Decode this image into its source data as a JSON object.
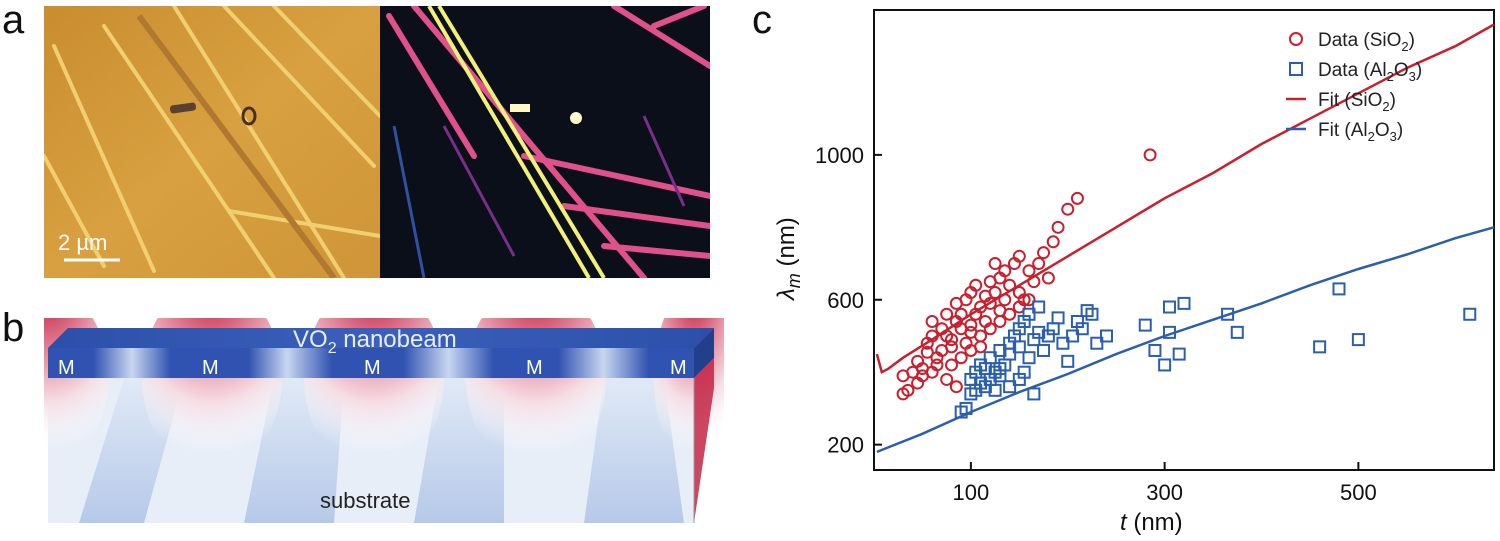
{
  "panels": {
    "a": "a",
    "b": "b",
    "c": "c"
  },
  "panel_a": {
    "scale_bar_label": "2 µm"
  },
  "panel_b": {
    "nanobeam_label_main": "VO",
    "nanobeam_label_sub": "2",
    "nanobeam_label_rest": " nanobeam",
    "domain_label": "M",
    "domain_labels": [
      "M",
      "M",
      "M",
      "M",
      "M"
    ],
    "substrate_label": "substrate"
  },
  "colors": {
    "sio2": "#c8202e",
    "al2o3": "#2b5fae",
    "beam": "#2f55b0"
  },
  "chart_data": {
    "type": "scatter",
    "xlabel_var": "t",
    "xlabel_unit": " (nm)",
    "ylabel_var": "λ",
    "ylabel_sub": "m",
    "ylabel_unit": " (nm)",
    "xlim": [
      0,
      640
    ],
    "ylim": [
      130,
      1400
    ],
    "xticks": [
      100,
      300,
      500
    ],
    "yticks": [
      200,
      600,
      1000
    ],
    "legend_position": "top-right",
    "legend": [
      {
        "prefix": "Data (SiO",
        "sub": "2",
        "suffix": ")"
      },
      {
        "prefix": "Data (Al",
        "sub": "2",
        "mid": "O",
        "sub2": "3",
        "suffix": ")"
      },
      {
        "prefix": "Fit (SiO",
        "sub": "2",
        "suffix": ")"
      },
      {
        "prefix": "Fit (Al",
        "sub": "2",
        "mid": "O",
        "sub2": "3",
        "suffix": ")"
      }
    ],
    "series": [
      {
        "name": "Data (SiO2)",
        "marker": "circle",
        "points": [
          [
            30,
            390
          ],
          [
            40,
            400
          ],
          [
            45,
            430
          ],
          [
            50,
            410
          ],
          [
            55,
            455
          ],
          [
            55,
            480
          ],
          [
            60,
            500
          ],
          [
            60,
            540
          ],
          [
            65,
            420
          ],
          [
            70,
            460
          ],
          [
            70,
            520
          ],
          [
            75,
            500
          ],
          [
            75,
            560
          ],
          [
            80,
            490
          ],
          [
            80,
            470
          ],
          [
            85,
            540
          ],
          [
            85,
            590
          ],
          [
            90,
            520
          ],
          [
            90,
            560
          ],
          [
            95,
            600
          ],
          [
            95,
            480
          ],
          [
            100,
            530
          ],
          [
            100,
            510
          ],
          [
            100,
            620
          ],
          [
            105,
            640
          ],
          [
            105,
            560
          ],
          [
            110,
            500
          ],
          [
            110,
            580
          ],
          [
            115,
            610
          ],
          [
            115,
            540
          ],
          [
            120,
            650
          ],
          [
            120,
            590
          ],
          [
            125,
            700
          ],
          [
            125,
            620
          ],
          [
            130,
            570
          ],
          [
            130,
            660
          ],
          [
            135,
            600
          ],
          [
            135,
            680
          ],
          [
            140,
            640
          ],
          [
            145,
            700
          ],
          [
            150,
            620
          ],
          [
            150,
            720
          ],
          [
            155,
            600
          ],
          [
            160,
            680
          ],
          [
            165,
            650
          ],
          [
            170,
            700
          ],
          [
            175,
            730
          ],
          [
            180,
            660
          ],
          [
            185,
            760
          ],
          [
            190,
            800
          ],
          [
            200,
            850
          ],
          [
            210,
            880
          ],
          [
            285,
            1000
          ],
          [
            30,
            340
          ],
          [
            35,
            350
          ],
          [
            45,
            370
          ],
          [
            60,
            400
          ],
          [
            65,
            440
          ],
          [
            75,
            380
          ],
          [
            90,
            440
          ],
          [
            100,
            460
          ],
          [
            110,
            470
          ],
          [
            120,
            520
          ],
          [
            130,
            540
          ],
          [
            140,
            560
          ],
          [
            150,
            580
          ],
          [
            160,
            600
          ],
          [
            80,
            420
          ],
          [
            85,
            360
          ],
          [
            50,
            390
          ]
        ]
      },
      {
        "name": "Data (Al2O3)",
        "marker": "square",
        "points": [
          [
            90,
            290
          ],
          [
            95,
            300
          ],
          [
            100,
            340
          ],
          [
            100,
            380
          ],
          [
            105,
            350
          ],
          [
            105,
            400
          ],
          [
            110,
            370
          ],
          [
            110,
            420
          ],
          [
            115,
            360
          ],
          [
            115,
            410
          ],
          [
            120,
            380
          ],
          [
            120,
            440
          ],
          [
            125,
            350
          ],
          [
            125,
            400
          ],
          [
            130,
            390
          ],
          [
            130,
            460
          ],
          [
            135,
            420
          ],
          [
            140,
            450
          ],
          [
            140,
            480
          ],
          [
            145,
            500
          ],
          [
            150,
            470
          ],
          [
            150,
            520
          ],
          [
            155,
            400
          ],
          [
            155,
            540
          ],
          [
            160,
            440
          ],
          [
            160,
            560
          ],
          [
            165,
            490
          ],
          [
            170,
            510
          ],
          [
            170,
            580
          ],
          [
            175,
            460
          ],
          [
            180,
            500
          ],
          [
            185,
            520
          ],
          [
            190,
            550
          ],
          [
            195,
            480
          ],
          [
            200,
            430
          ],
          [
            205,
            500
          ],
          [
            210,
            540
          ],
          [
            215,
            520
          ],
          [
            220,
            570
          ],
          [
            225,
            560
          ],
          [
            230,
            480
          ],
          [
            240,
            500
          ],
          [
            280,
            530
          ],
          [
            290,
            460
          ],
          [
            300,
            420
          ],
          [
            305,
            580
          ],
          [
            305,
            510
          ],
          [
            315,
            450
          ],
          [
            320,
            590
          ],
          [
            365,
            560
          ],
          [
            375,
            510
          ],
          [
            460,
            470
          ],
          [
            480,
            630
          ],
          [
            500,
            490
          ],
          [
            615,
            560
          ],
          [
            165,
            340
          ],
          [
            140,
            360
          ],
          [
            150,
            380
          ],
          [
            130,
            410
          ]
        ]
      },
      {
        "name": "Fit (SiO2)",
        "type": "line",
        "points": [
          [
            3,
            450
          ],
          [
            8,
            400
          ],
          [
            15,
            410
          ],
          [
            30,
            440
          ],
          [
            60,
            490
          ],
          [
            100,
            560
          ],
          [
            150,
            640
          ],
          [
            200,
            720
          ],
          [
            250,
            800
          ],
          [
            300,
            880
          ],
          [
            350,
            950
          ],
          [
            400,
            1030
          ],
          [
            450,
            1100
          ],
          [
            500,
            1170
          ],
          [
            550,
            1240
          ],
          [
            600,
            1300
          ],
          [
            640,
            1360
          ]
        ]
      },
      {
        "name": "Fit (Al2O3)",
        "type": "line",
        "points": [
          [
            3,
            180
          ],
          [
            50,
            230
          ],
          [
            100,
            290
          ],
          [
            150,
            345
          ],
          [
            200,
            395
          ],
          [
            250,
            450
          ],
          [
            300,
            500
          ],
          [
            350,
            545
          ],
          [
            400,
            590
          ],
          [
            450,
            640
          ],
          [
            500,
            685
          ],
          [
            550,
            725
          ],
          [
            600,
            770
          ],
          [
            640,
            800
          ]
        ]
      }
    ]
  }
}
